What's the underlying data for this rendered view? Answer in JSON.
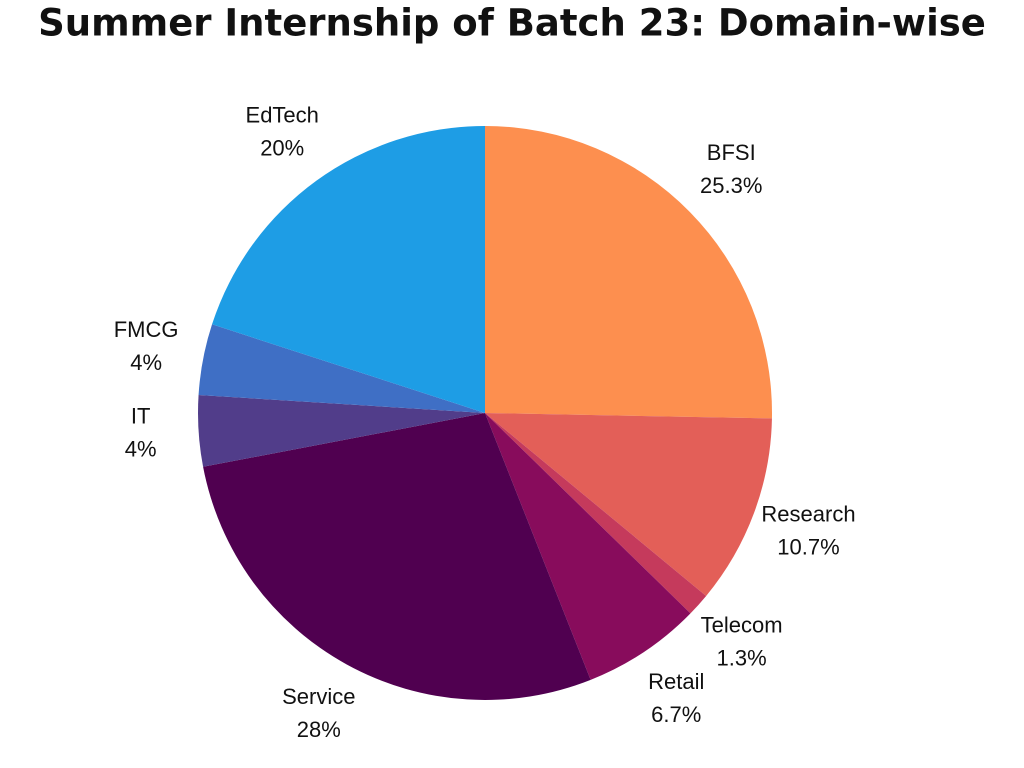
{
  "chart_data": {
    "type": "pie",
    "title": "Summer Internship of Batch 23: Domain-wise",
    "categories": [
      "BFSI",
      "Research",
      "Telecom",
      "Retail",
      "Service",
      "IT",
      "FMCG",
      "EdTech"
    ],
    "values": [
      25.3,
      10.7,
      1.3,
      6.7,
      28,
      4,
      4,
      20
    ],
    "value_labels": [
      "25.3%",
      "10.7%",
      "1.3%",
      "6.7%",
      "28%",
      "4%",
      "4%",
      "20%"
    ],
    "colors": [
      "#fd8f4f",
      "#e35f58",
      "#c53a5c",
      "#880c5c",
      "#500050",
      "#513d8a",
      "#3f6fc5",
      "#1e9de5"
    ]
  }
}
